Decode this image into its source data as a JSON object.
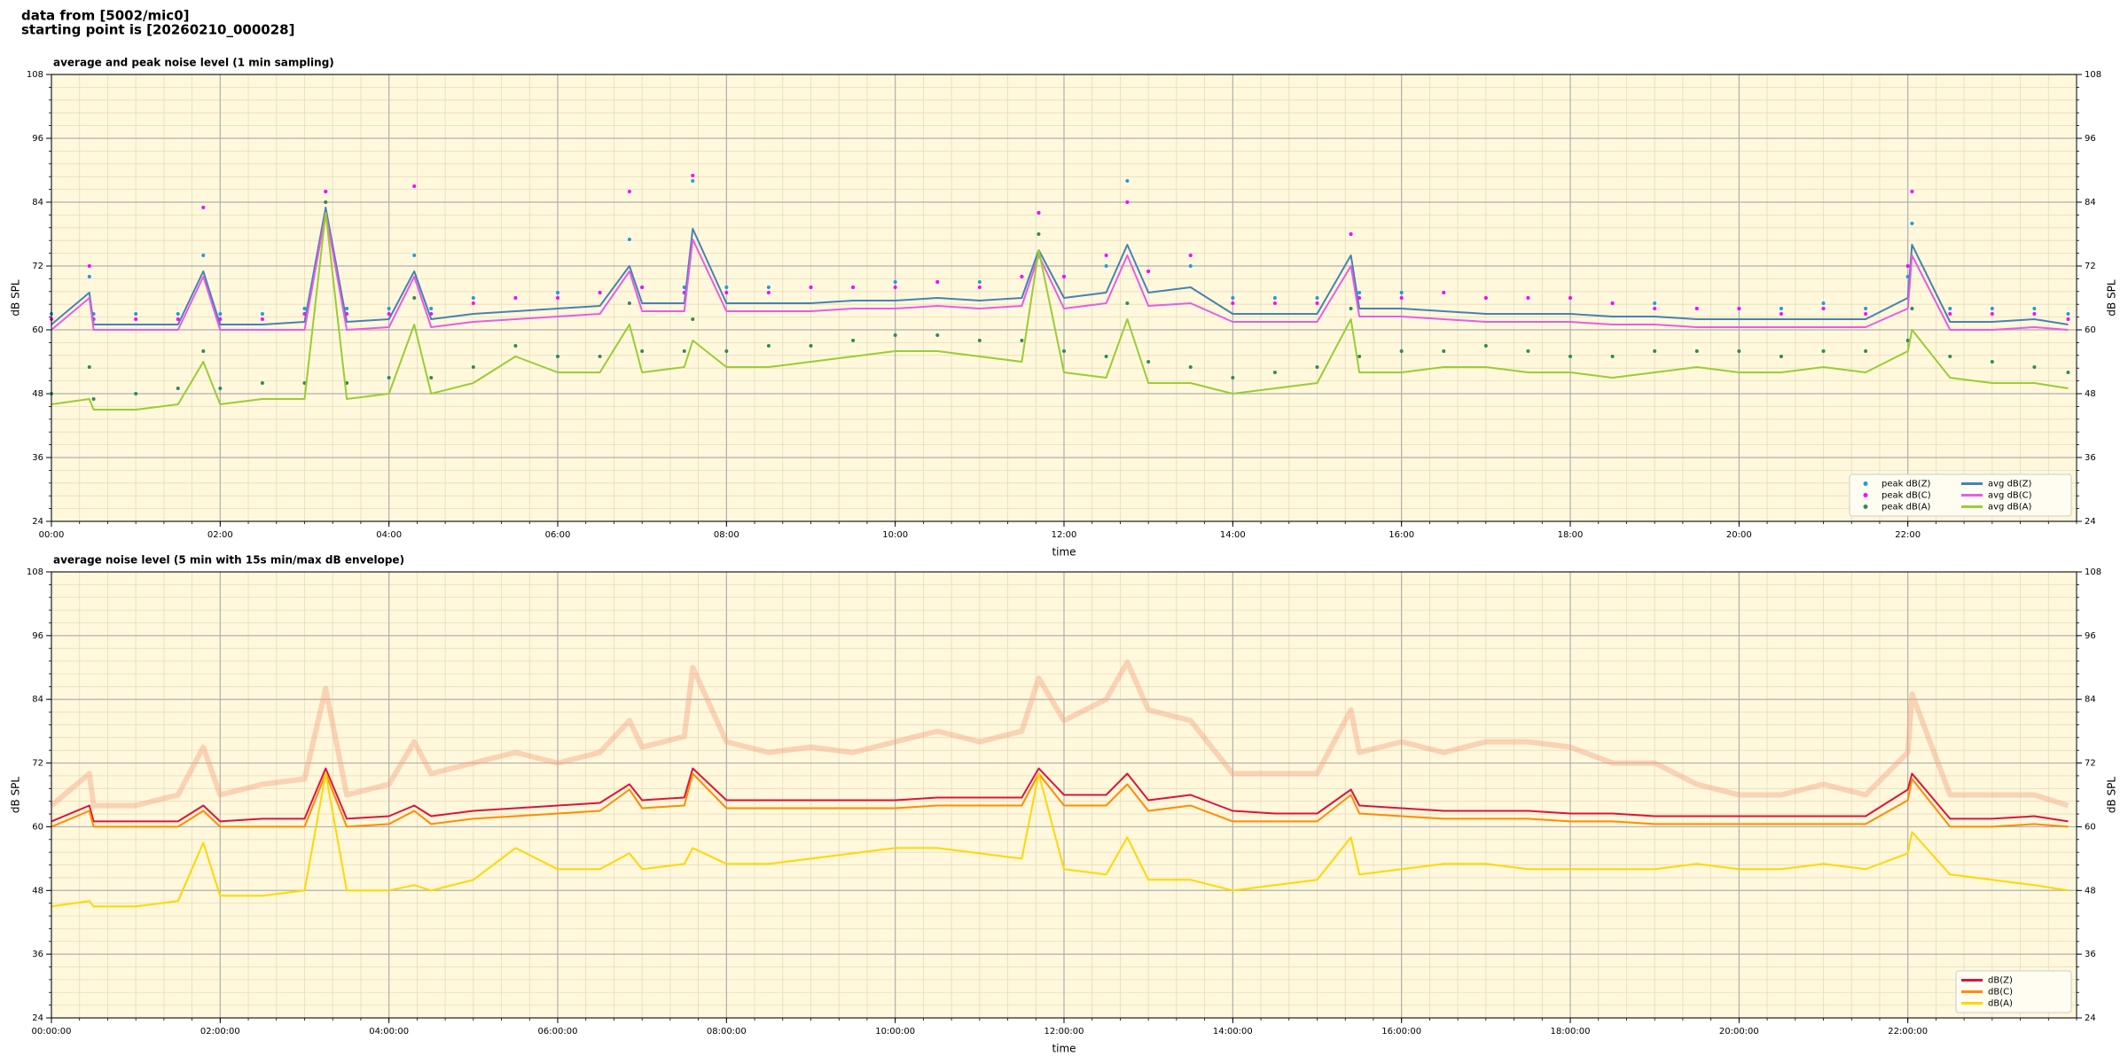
{
  "header": {
    "lines": [
      "data from [5002/mic0]",
      "starting point is [20260210_000028]"
    ]
  },
  "chart_data": [
    {
      "type": "line",
      "title": "average and peak noise level (1 min sampling)",
      "x_label": "time",
      "y_label": "dB SPL",
      "xlim": [
        0,
        24
      ],
      "ylim": [
        24,
        108
      ],
      "xticks": [
        {
          "value": 0,
          "label": "00:00"
        },
        {
          "value": 2,
          "label": "02:00"
        },
        {
          "value": 4,
          "label": "04:00"
        },
        {
          "value": 6,
          "label": "06:00"
        },
        {
          "value": 8,
          "label": "08:00"
        },
        {
          "value": 10,
          "label": "10:00"
        },
        {
          "value": 12,
          "label": "12:00"
        },
        {
          "value": 14,
          "label": "14:00"
        },
        {
          "value": 16,
          "label": "16:00"
        },
        {
          "value": 18,
          "label": "18:00"
        },
        {
          "value": 20,
          "label": "20:00"
        },
        {
          "value": 22,
          "label": "22:00"
        }
      ],
      "yticks": [
        24,
        36,
        48,
        60,
        72,
        84,
        96,
        108
      ],
      "grid": true,
      "minor_grid": true,
      "legend": "lower right",
      "legend_columns": 2,
      "x": [
        0,
        0.45,
        0.5,
        1,
        1.5,
        1.8,
        2,
        2.5,
        3,
        3.25,
        3.5,
        4,
        4.3,
        4.5,
        5,
        5.5,
        6,
        6.5,
        6.85,
        7,
        7.5,
        7.6,
        8,
        8.5,
        9,
        9.5,
        10,
        10.5,
        11,
        11.5,
        11.7,
        12,
        12.5,
        12.75,
        13,
        13.5,
        14,
        14.5,
        15,
        15.4,
        15.5,
        16,
        16.5,
        17,
        17.5,
        18,
        18.5,
        19,
        19.5,
        20,
        20.5,
        21,
        21.5,
        22,
        22.05,
        22.5,
        23,
        23.5,
        23.9
      ],
      "series": [
        {
          "name": "peak dB(Z)",
          "type": "scatter",
          "color": "#1f9be0",
          "values": [
            63,
            70,
            63,
            63,
            63,
            74,
            63,
            63,
            64,
            86,
            64,
            64,
            74,
            64,
            66,
            66,
            67,
            67,
            77,
            68,
            68,
            88,
            68,
            68,
            68,
            68,
            69,
            69,
            69,
            70,
            82,
            70,
            72,
            88,
            71,
            72,
            66,
            66,
            66,
            78,
            67,
            67,
            67,
            66,
            66,
            66,
            65,
            65,
            64,
            64,
            64,
            65,
            64,
            70,
            80,
            64,
            64,
            64,
            63
          ]
        },
        {
          "name": "peak dB(C)",
          "type": "scatter",
          "color": "#ff00ff",
          "values": [
            62,
            72,
            62,
            62,
            62,
            83,
            62,
            62,
            63,
            86,
            63,
            63,
            87,
            63,
            65,
            66,
            66,
            67,
            86,
            68,
            67,
            89,
            67,
            67,
            68,
            68,
            68,
            69,
            68,
            70,
            82,
            70,
            74,
            84,
            71,
            74,
            65,
            65,
            65,
            78,
            66,
            66,
            67,
            66,
            66,
            66,
            65,
            64,
            64,
            64,
            63,
            64,
            63,
            72,
            86,
            63,
            63,
            63,
            62
          ]
        },
        {
          "name": "peak dB(A)",
          "type": "scatter",
          "color": "#2e8b57",
          "values": [
            48,
            53,
            47,
            48,
            49,
            56,
            49,
            50,
            50,
            84,
            50,
            51,
            66,
            51,
            53,
            57,
            55,
            55,
            65,
            56,
            56,
            62,
            56,
            57,
            57,
            58,
            59,
            59,
            58,
            58,
            78,
            56,
            55,
            65,
            54,
            53,
            51,
            52,
            53,
            64,
            55,
            56,
            56,
            57,
            56,
            55,
            55,
            56,
            56,
            56,
            55,
            56,
            56,
            58,
            64,
            55,
            54,
            53,
            52
          ]
        },
        {
          "name": "avg dB(Z)",
          "type": "line",
          "color": "#4682b4",
          "values": [
            61,
            67,
            61,
            61,
            61,
            71,
            61,
            61,
            61.5,
            83,
            61.5,
            62,
            71,
            62,
            63,
            63.5,
            64,
            64.5,
            72,
            65,
            65,
            79,
            65,
            65,
            65,
            65.5,
            65.5,
            66,
            65.5,
            66,
            75,
            66,
            67,
            76,
            67,
            68,
            63,
            63,
            63,
            74,
            64,
            64,
            63.5,
            63,
            63,
            63,
            62.5,
            62.5,
            62,
            62,
            62,
            62,
            62,
            66,
            76,
            61.5,
            61.5,
            62,
            61
          ]
        },
        {
          "name": "avg dB(C)",
          "type": "line",
          "color": "#e75ce6",
          "values": [
            60,
            66,
            60,
            60,
            60,
            70,
            60,
            60,
            60,
            82,
            60,
            60.5,
            70,
            60.5,
            61.5,
            62,
            62.5,
            63,
            71,
            63.5,
            63.5,
            77,
            63.5,
            63.5,
            63.5,
            64,
            64,
            64.5,
            64,
            64.5,
            74,
            64,
            65,
            74,
            64.5,
            65,
            61.5,
            61.5,
            61.5,
            72,
            62.5,
            62.5,
            62,
            61.5,
            61.5,
            61.5,
            61,
            61,
            60.5,
            60.5,
            60.5,
            60.5,
            60.5,
            64,
            74,
            60,
            60,
            60.5,
            60
          ]
        },
        {
          "name": "avg dB(A)",
          "type": "line",
          "color": "#9acd32",
          "values": [
            46,
            47,
            45,
            45,
            46,
            54,
            46,
            47,
            47,
            82,
            47,
            48,
            61,
            48,
            50,
            55,
            52,
            52,
            61,
            52,
            53,
            58,
            53,
            53,
            54,
            55,
            56,
            56,
            55,
            54,
            75,
            52,
            51,
            62,
            50,
            50,
            48,
            49,
            50,
            62,
            52,
            52,
            53,
            53,
            52,
            52,
            51,
            52,
            53,
            52,
            52,
            53,
            52,
            56,
            60,
            51,
            50,
            50,
            49
          ]
        }
      ]
    },
    {
      "type": "line",
      "title": "average noise level (5 min with 15s min/max dB envelope)",
      "x_label": "time",
      "y_label": "dB SPL",
      "xlim": [
        0,
        24
      ],
      "ylim": [
        24,
        108
      ],
      "xticks": [
        {
          "value": 0,
          "label": "00:00:00"
        },
        {
          "value": 2,
          "label": "02:00:00"
        },
        {
          "value": 4,
          "label": "04:00:00"
        },
        {
          "value": 6,
          "label": "06:00:00"
        },
        {
          "value": 8,
          "label": "08:00:00"
        },
        {
          "value": 10,
          "label": "10:00:00"
        },
        {
          "value": 12,
          "label": "12:00:00"
        },
        {
          "value": 14,
          "label": "14:00:00"
        },
        {
          "value": 16,
          "label": "16:00:00"
        },
        {
          "value": 18,
          "label": "18:00:00"
        },
        {
          "value": 20,
          "label": "20:00:00"
        },
        {
          "value": 22,
          "label": "22:00:00"
        }
      ],
      "yticks": [
        24,
        36,
        48,
        60,
        72,
        84,
        96,
        108
      ],
      "grid": true,
      "minor_grid": true,
      "legend": "lower right",
      "legend_columns": 1,
      "x": [
        0,
        0.45,
        0.5,
        1,
        1.5,
        1.8,
        2,
        2.5,
        3,
        3.25,
        3.5,
        4,
        4.3,
        4.5,
        5,
        5.5,
        6,
        6.5,
        6.85,
        7,
        7.5,
        7.6,
        8,
        8.5,
        9,
        9.5,
        10,
        10.5,
        11,
        11.5,
        11.7,
        12,
        12.5,
        12.75,
        13,
        13.5,
        14,
        14.5,
        15,
        15.4,
        15.5,
        16,
        16.5,
        17,
        17.5,
        18,
        18.5,
        19,
        19.5,
        20,
        20.5,
        21,
        21.5,
        22,
        22.05,
        22.5,
        23,
        23.5,
        23.9
      ],
      "envelope": {
        "color": "#f4a582",
        "values": [
          64,
          70,
          64,
          64,
          66,
          75,
          66,
          68,
          69,
          86,
          66,
          68,
          76,
          70,
          72,
          74,
          72,
          74,
          80,
          75,
          77,
          90,
          76,
          74,
          75,
          74,
          76,
          78,
          76,
          78,
          88,
          80,
          84,
          91,
          82,
          80,
          70,
          70,
          70,
          82,
          74,
          76,
          74,
          76,
          76,
          75,
          72,
          72,
          68,
          66,
          66,
          68,
          66,
          74,
          85,
          66,
          66,
          66,
          64
        ]
      },
      "series": [
        {
          "name": "dB(Z)",
          "type": "line",
          "color": "#dc143c",
          "values": [
            61,
            64,
            61,
            61,
            61,
            64,
            61,
            61.5,
            61.5,
            71,
            61.5,
            62,
            64,
            62,
            63,
            63.5,
            64,
            64.5,
            68,
            65,
            65.5,
            71,
            65,
            65,
            65,
            65,
            65,
            65.5,
            65.5,
            65.5,
            71,
            66,
            66,
            70,
            65,
            66,
            63,
            62.5,
            62.5,
            67,
            64,
            63.5,
            63,
            63,
            63,
            62.5,
            62.5,
            62,
            62,
            62,
            62,
            62,
            62,
            67,
            70,
            61.5,
            61.5,
            62,
            61
          ]
        },
        {
          "name": "dB(C)",
          "type": "line",
          "color": "#ff8c00",
          "values": [
            60,
            63,
            60,
            60,
            60,
            63,
            60,
            60,
            60,
            70,
            60,
            60.5,
            63,
            60.5,
            61.5,
            62,
            62.5,
            63,
            67,
            63.5,
            64,
            70,
            63.5,
            63.5,
            63.5,
            63.5,
            63.5,
            64,
            64,
            64,
            70,
            64,
            64,
            68,
            63,
            64,
            61,
            61,
            61,
            66,
            62.5,
            62,
            61.5,
            61.5,
            61.5,
            61,
            61,
            60.5,
            60.5,
            60.5,
            60.5,
            60.5,
            60.5,
            65,
            69,
            60,
            60,
            60.5,
            60
          ]
        },
        {
          "name": "dB(A)",
          "type": "line",
          "color": "#ffd700",
          "values": [
            45,
            46,
            45,
            45,
            46,
            57,
            47,
            47,
            48,
            70,
            48,
            48,
            49,
            48,
            50,
            56,
            52,
            52,
            55,
            52,
            53,
            56,
            53,
            53,
            54,
            55,
            56,
            56,
            55,
            54,
            70,
            52,
            51,
            58,
            50,
            50,
            48,
            49,
            50,
            58,
            51,
            52,
            53,
            53,
            52,
            52,
            52,
            52,
            53,
            52,
            52,
            53,
            52,
            55,
            59,
            51,
            50,
            49,
            48
          ]
        }
      ]
    }
  ]
}
